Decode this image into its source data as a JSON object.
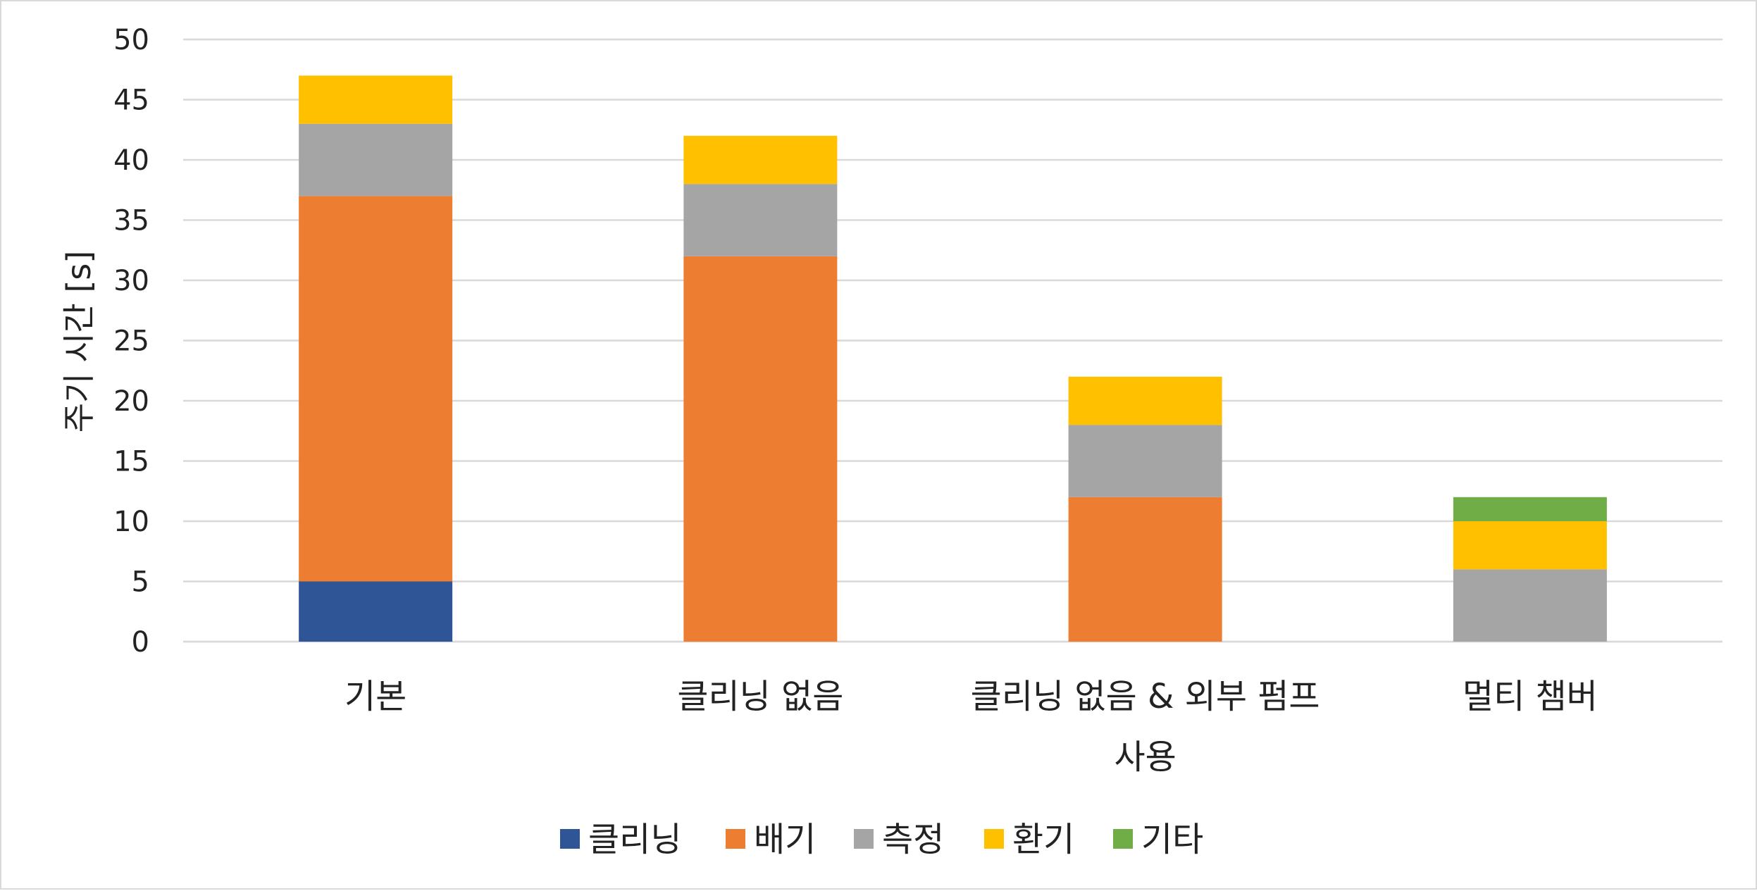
{
  "chart_data": {
    "type": "bar",
    "stacked": true,
    "title": "",
    "xlabel": "",
    "ylabel": "주기 시간 [s]",
    "ylim": [
      0,
      50
    ],
    "yticks": [
      0,
      5,
      10,
      15,
      20,
      25,
      30,
      35,
      40,
      45,
      50
    ],
    "grid": true,
    "legend_position": "bottom",
    "categories": [
      [
        "기본"
      ],
      [
        "클리닝 없음"
      ],
      [
        "클리닝 없음 & 외부 펌프",
        "사용"
      ],
      [
        "멀티 챔버"
      ]
    ],
    "series": [
      {
        "name": "클리닝",
        "color": "#2F5597",
        "values": [
          5,
          0,
          0,
          0
        ]
      },
      {
        "name": "배기",
        "color": "#ED7D31",
        "values": [
          32,
          32,
          12,
          0
        ]
      },
      {
        "name": "측정",
        "color": "#A5A5A5",
        "values": [
          6,
          6,
          6,
          6
        ]
      },
      {
        "name": "환기",
        "color": "#FFC000",
        "values": [
          4,
          4,
          4,
          4
        ]
      },
      {
        "name": "기타",
        "color": "#70AD47",
        "values": [
          0,
          0,
          0,
          2
        ]
      }
    ]
  }
}
